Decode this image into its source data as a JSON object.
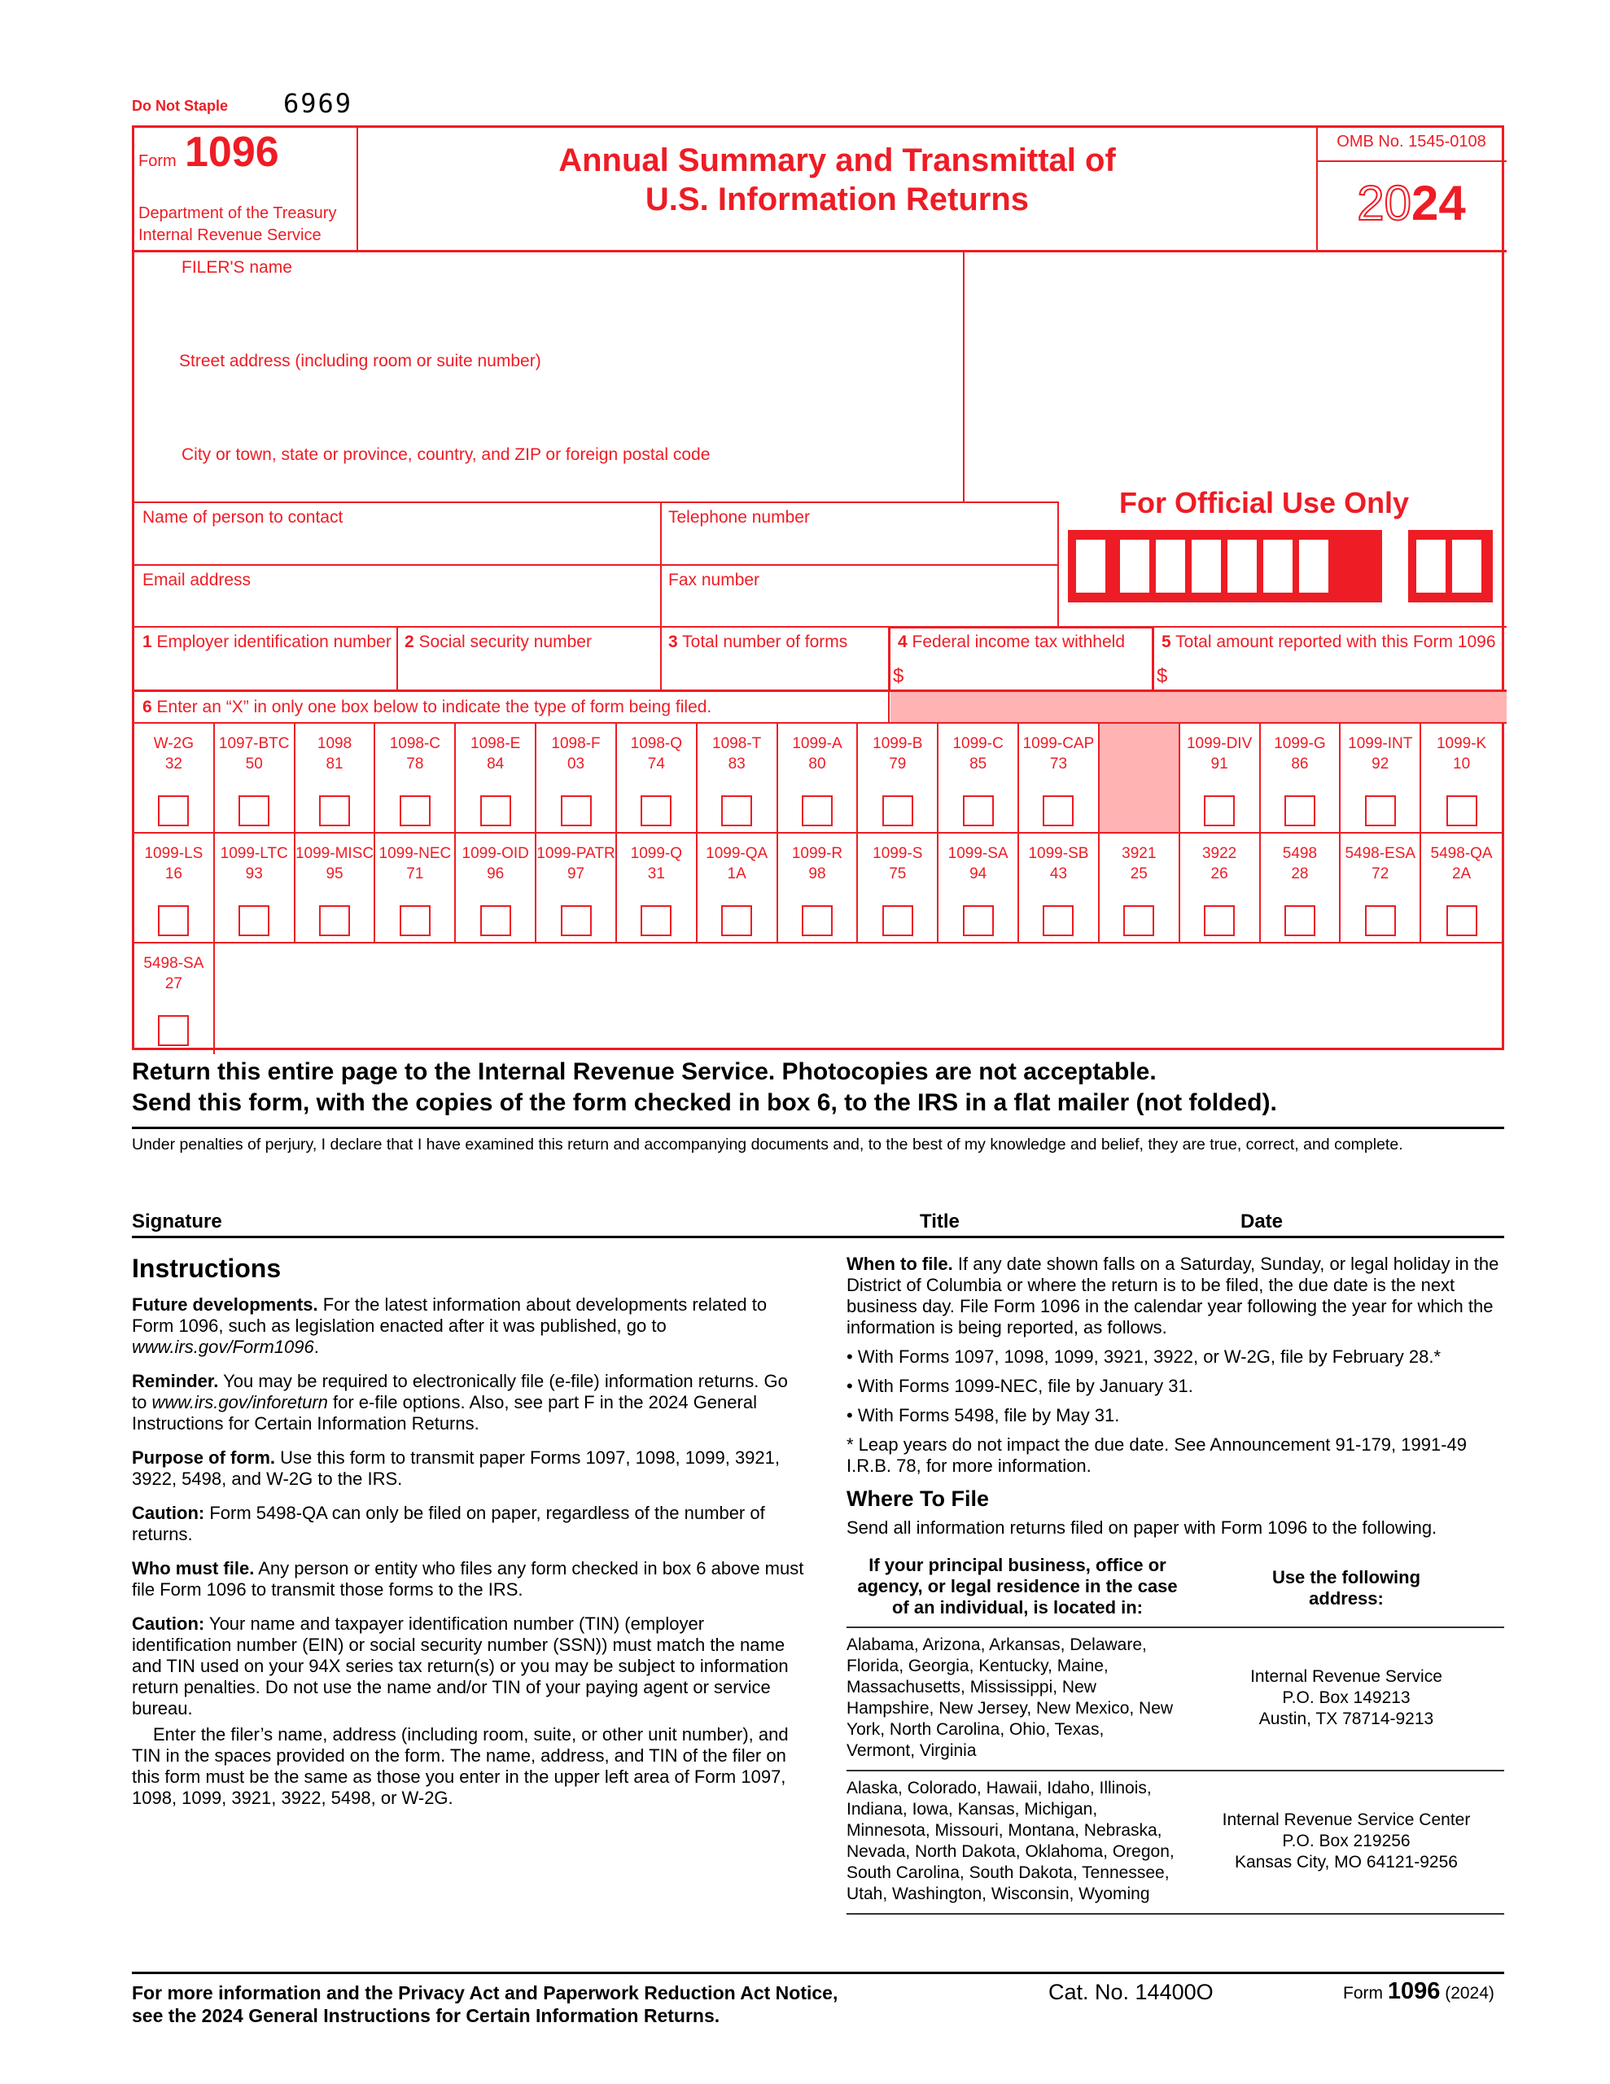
{
  "top": {
    "do_not_staple": "Do Not Staple",
    "code": "6969"
  },
  "header": {
    "form_word": "Form",
    "form_number": "1096",
    "dept1": "Department of the Treasury",
    "dept2": "Internal Revenue Service",
    "title1": "Annual Summary and Transmittal of",
    "title2": "U.S. Information Returns",
    "omb": "OMB No. 1545-0108",
    "year_outline": "20",
    "year_bold": "24"
  },
  "filer": {
    "name_label": "FILER'S name",
    "street_label": "Street address (including room or suite number)",
    "city_label": "City or town, state or province, country, and ZIP or foreign postal code"
  },
  "contact": {
    "name_label": "Name of person to contact",
    "phone_label": "Telephone number",
    "email_label": "Email address",
    "fax_label": "Fax number",
    "official_use": "For Official Use Only"
  },
  "boxes": {
    "b1_num": "1",
    "b1": "Employer identification number",
    "b2_num": "2",
    "b2": "Social security number",
    "b3_num": "3",
    "b3": "Total number of forms",
    "b4_num": "4",
    "b4": "Federal income tax withheld",
    "b5_num": "5",
    "b5": "Total amount reported with this Form 1096",
    "dollar": "$",
    "b6_num": "6",
    "b6": "Enter an “X” in only one box below to indicate the type of form being filed."
  },
  "form_types": [
    [
      {
        "name": "W-2G",
        "code": "32"
      },
      {
        "name": "1097-BTC",
        "code": "50"
      },
      {
        "name": "1098",
        "code": "81"
      },
      {
        "name": "1098-C",
        "code": "78"
      },
      {
        "name": "1098-E",
        "code": "84"
      },
      {
        "name": "1098-F",
        "code": "03"
      },
      {
        "name": "1098-Q",
        "code": "74"
      },
      {
        "name": "1098-T",
        "code": "83"
      },
      {
        "name": "1099-A",
        "code": "80"
      },
      {
        "name": "1099-B",
        "code": "79"
      },
      {
        "name": "1099-C",
        "code": "85"
      },
      {
        "name": "1099-CAP",
        "code": "73"
      },
      {
        "name": "",
        "code": "",
        "shaded": true
      },
      {
        "name": "1099-DIV",
        "code": "91"
      },
      {
        "name": "1099-G",
        "code": "86"
      },
      {
        "name": "1099-INT",
        "code": "92"
      },
      {
        "name": "1099-K",
        "code": "10"
      }
    ],
    [
      {
        "name": "1099-LS",
        "code": "16"
      },
      {
        "name": "1099-LTC",
        "code": "93"
      },
      {
        "name": "1099-MISC",
        "code": "95"
      },
      {
        "name": "1099-NEC",
        "code": "71"
      },
      {
        "name": "1099-OID",
        "code": "96"
      },
      {
        "name": "1099-PATR",
        "code": "97"
      },
      {
        "name": "1099-Q",
        "code": "31"
      },
      {
        "name": "1099-QA",
        "code": "1A"
      },
      {
        "name": "1099-R",
        "code": "98"
      },
      {
        "name": "1099-S",
        "code": "75"
      },
      {
        "name": "1099-SA",
        "code": "94"
      },
      {
        "name": "1099-SB",
        "code": "43"
      },
      {
        "name": "3921",
        "code": "25"
      },
      {
        "name": "3922",
        "code": "26"
      },
      {
        "name": "5498",
        "code": "28"
      },
      {
        "name": "5498-ESA",
        "code": "72"
      },
      {
        "name": "5498-QA",
        "code": "2A"
      }
    ],
    [
      {
        "name": "5498-SA",
        "code": "27"
      }
    ]
  ],
  "notice": {
    "line1": "Return this entire page to the Internal Revenue Service. Photocopies are not acceptable.",
    "line2": "Send this form, with the copies of the form checked in box 6, to the IRS in a flat mailer (not folded).",
    "perjury": "Under penalties of perjury, I declare that I have examined this return and accompanying documents and, to the best of my knowledge and belief, they are true, correct, and complete."
  },
  "signature": {
    "signature": "Signature",
    "title": "Title",
    "date": "Date"
  },
  "instructions": {
    "heading": "Instructions",
    "future_lead": "Future developments.",
    "future_text": " For the latest information about developments related to Form 1096, such as legislation enacted after it was published, go to ",
    "future_url": "www.irs.gov/Form1096",
    "future_end": ".",
    "reminder_lead": "Reminder.",
    "reminder_text": " You may be required to electronically file (e-file) information returns. Go to ",
    "reminder_url": "www.irs.gov/inforeturn",
    "reminder_end": " for e-file options.  Also, see part F in the 2024 General Instructions for Certain Information Returns.",
    "purpose_lead": "Purpose of form.",
    "purpose_text": " Use this form to transmit paper Forms 1097, 1098, 1099, 3921, 3922, 5498, and W-2G to the IRS.",
    "caution1_lead": "Caution:",
    "caution1_text": " Form 5498-QA can only be filed on paper, regardless of the number of returns.",
    "who_lead": "Who must file.",
    "who_text": " Any person or entity who files any form checked in box 6 above must file Form 1096 to transmit those forms to the IRS.",
    "caution2_lead": "Caution:",
    "caution2_text": " Your name and taxpayer identification number (TIN) (employer identification number (EIN) or social security number (SSN)) must match the name and TIN used on your 94X series tax return(s) or you may be subject to information return penalties. Do not use the name and/or TIN of your paying agent or service bureau.",
    "enter_text": "Enter the filer’s name, address (including room, suite, or other unit number), and TIN in the spaces provided on the form. The name, address, and TIN of the filer on this form must be the same as those you enter in the upper left area of Form 1097, 1098, 1099, 3921, 3922, 5498, or W-2G.",
    "when_lead": "When to file.",
    "when_text": " If any date shown falls on a Saturday, Sunday, or legal holiday in the District of Columbia or where the return is to be filed, the due date is the next business day. File Form 1096 in the calendar year following the year for which the information is being reported, as follows.",
    "bullets": [
      "With Forms 1097, 1098, 1099, 3921, 3922, or W-2G, file by February 28.*",
      "With Forms 1099-NEC, file by January 31.",
      "With Forms 5498, file by May 31."
    ],
    "leap": "* Leap years do not impact the due date. See Announcement 91-179, 1991-49 I.R.B. 78, for more information.",
    "where_heading": "Where To File",
    "where_text": "Send all information returns filed on paper with Form 1096 to the following.",
    "table": {
      "col1": "If your principal business, office or agency, or legal residence in the case of an individual, is located in:",
      "col2": "Use the following address:",
      "rows": [
        {
          "states": "Alabama, Arizona, Arkansas, Delaware, Florida, Georgia, Kentucky, Maine, Massachusetts, Mississippi, New Hampshire, New Jersey, New Mexico, New York, North Carolina, Ohio, Texas, Vermont, Virginia",
          "addr1": "Internal Revenue Service",
          "addr2": "P.O. Box 149213",
          "addr3": "Austin, TX 78714-9213"
        },
        {
          "states": "Alaska, Colorado, Hawaii, Idaho, Illinois, Indiana, Iowa, Kansas, Michigan, Minnesota, Missouri, Montana, Nebraska, Nevada, North Dakota, Oklahoma, Oregon, South Carolina, South Dakota, Tennessee, Utah, Washington, Wisconsin, Wyoming",
          "addr1": "Internal Revenue Service Center",
          "addr2": "P.O. Box 219256",
          "addr3": "Kansas City, MO 64121-9256"
        }
      ]
    }
  },
  "footer": {
    "notice1": "For more information and the Privacy Act and Paperwork Reduction Act Notice,",
    "notice2": "see the 2024 General Instructions for Certain Information Returns.",
    "cat": "Cat. No. 14400O",
    "form_word": "Form",
    "form_number": "1096",
    "form_year": "(2024)"
  },
  "colors": {
    "form_red": "#ee1c25",
    "shade": "#ffb3b3"
  }
}
